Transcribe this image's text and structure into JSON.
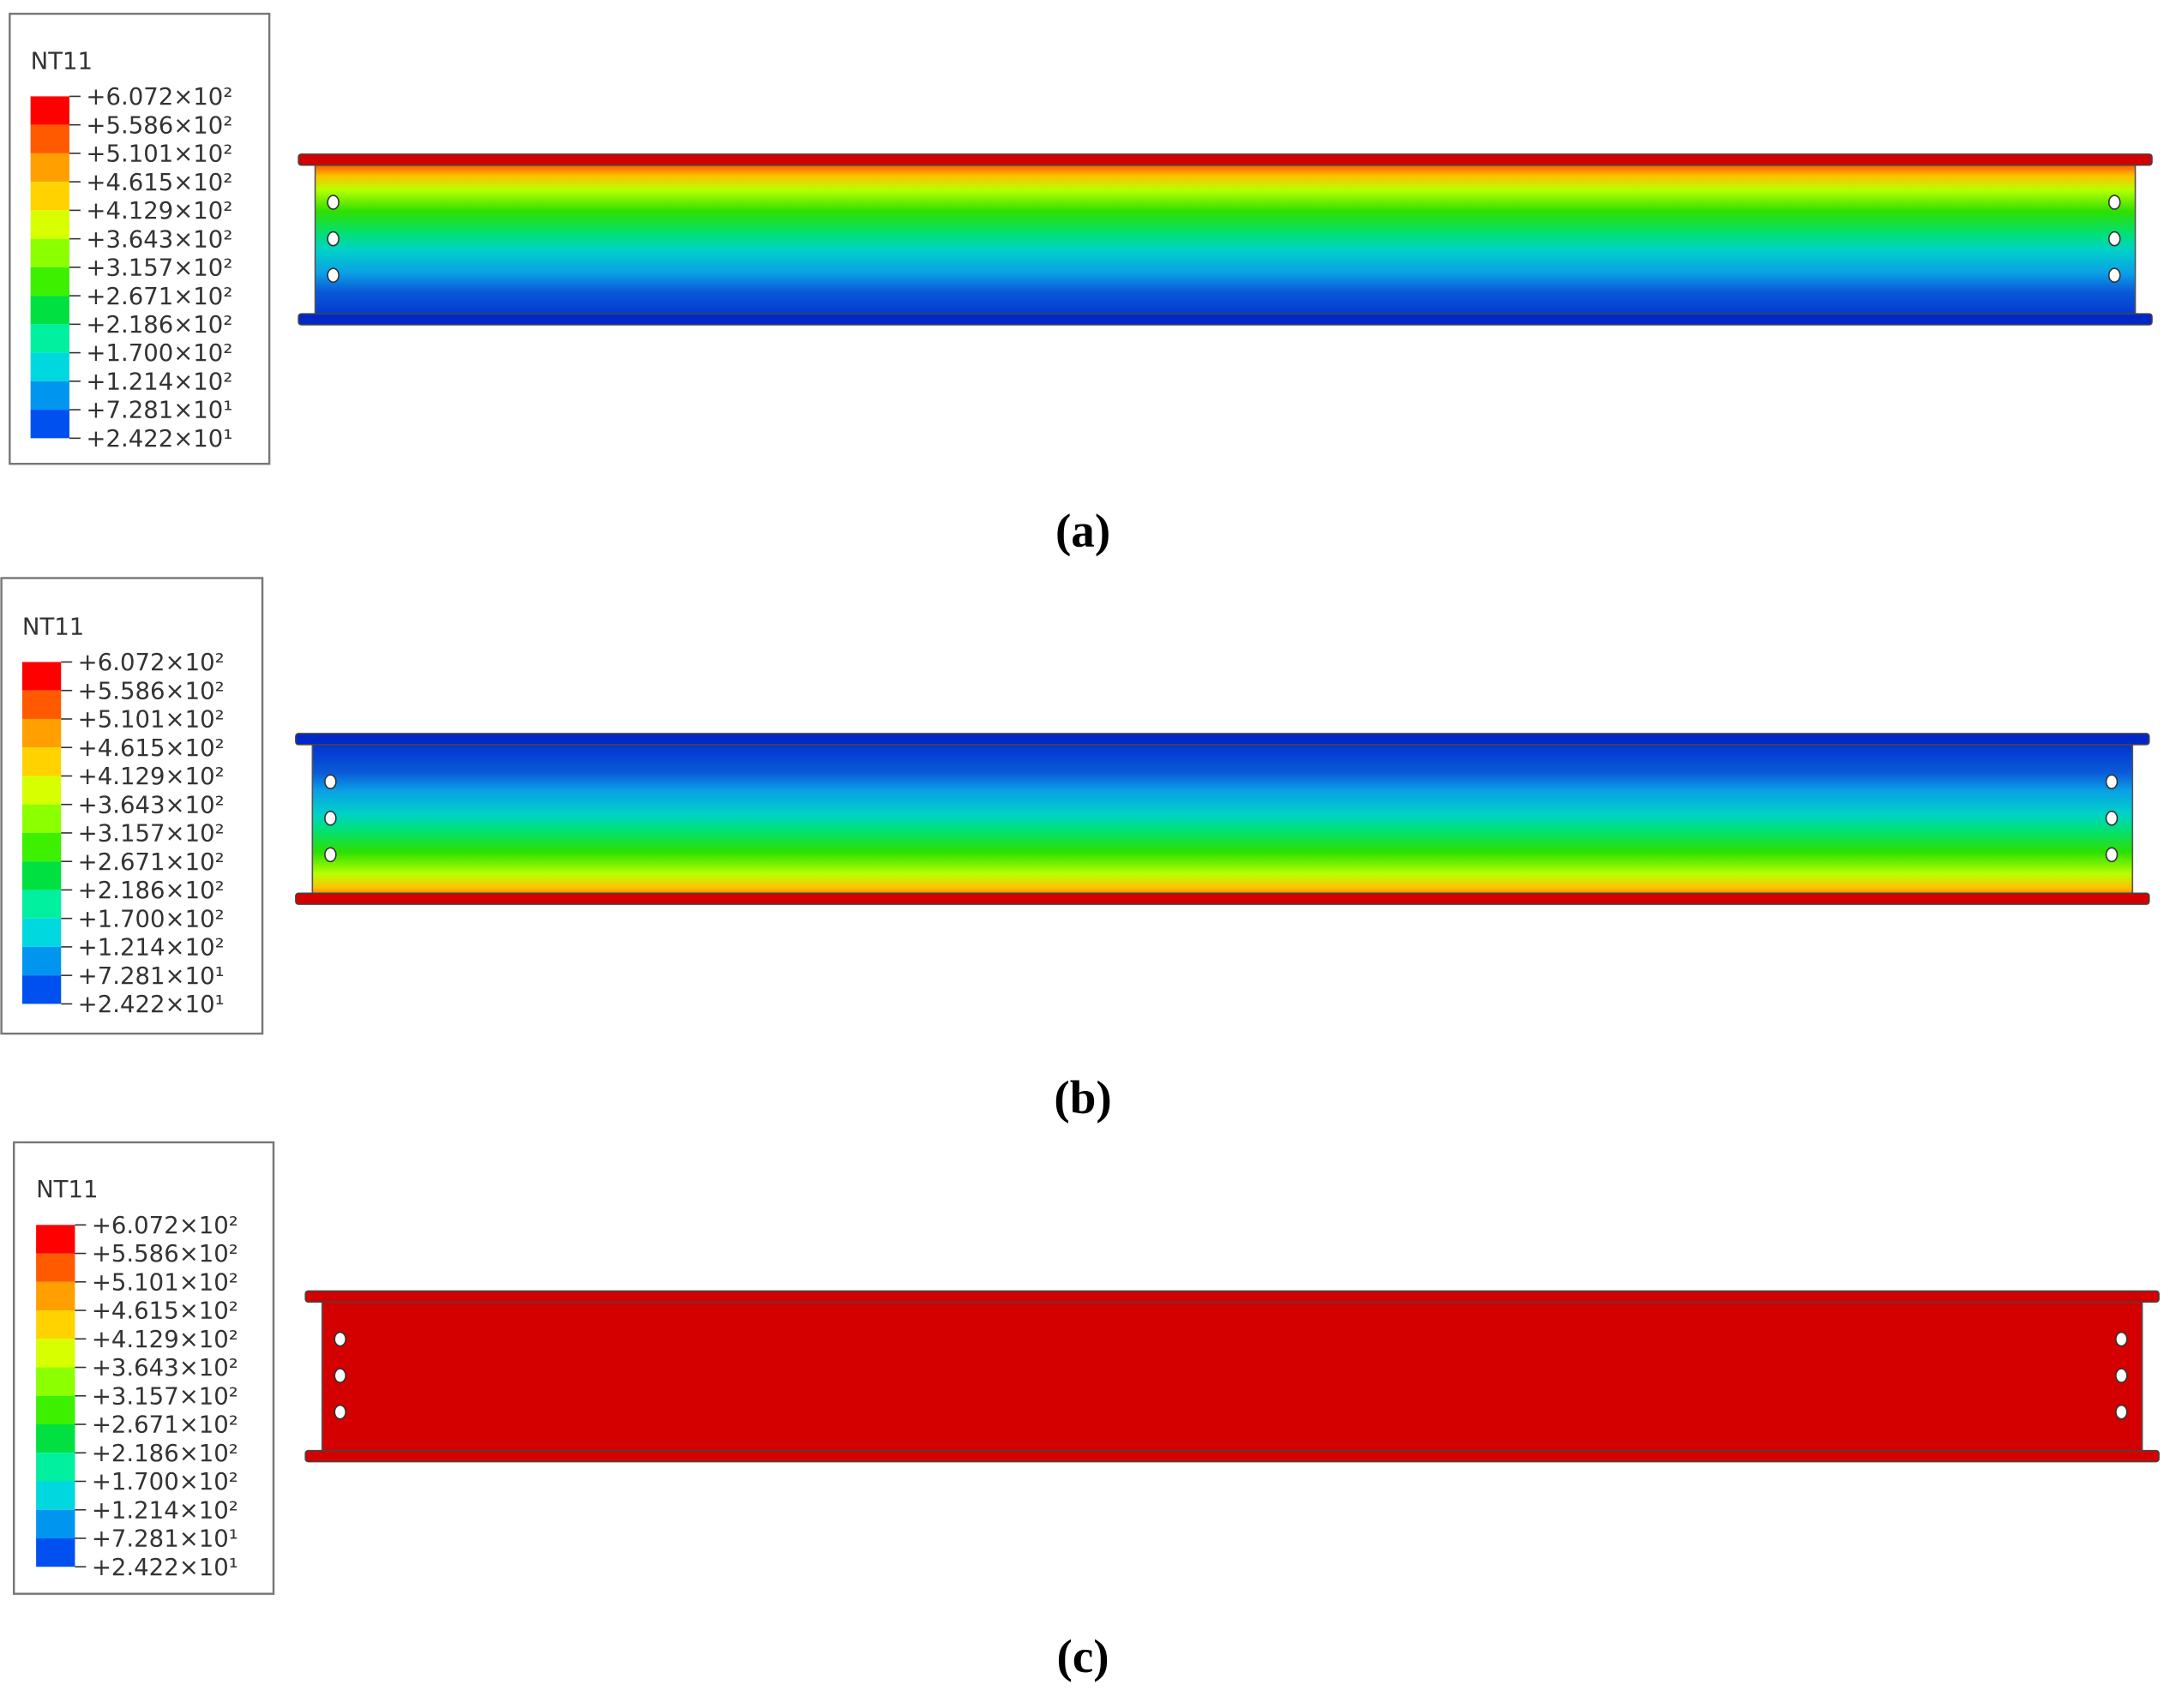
{
  "panels": [
    {
      "legend": {
        "title": "NT11",
        "labels": [
          "+6.072×10²",
          "+5.586×10²",
          "+5.101×10²",
          "+4.615×10²",
          "+4.129×10²",
          "+3.643×10²",
          "+3.157×10²",
          "+2.671×10²",
          "+2.186×10²",
          "+1.700×10²",
          "+1.214×10²",
          "+7.281×10¹",
          "+2.422×10¹"
        ]
      },
      "caption": "(a)"
    },
    {
      "legend": {
        "title": "NT11",
        "labels": [
          "+6.072×10²",
          "+5.586×10²",
          "+5.101×10²",
          "+4.615×10²",
          "+4.129×10²",
          "+3.643×10²",
          "+3.157×10²",
          "+2.671×10²",
          "+2.186×10²",
          "+1.700×10²",
          "+1.214×10²",
          "+7.281×10¹",
          "+2.422×10¹"
        ]
      },
      "caption": "(b)"
    },
    {
      "legend": {
        "title": "NT11",
        "labels": [
          "+6.072×10²",
          "+5.586×10²",
          "+5.101×10²",
          "+4.615×10²",
          "+4.129×10²",
          "+3.643×10²",
          "+3.157×10²",
          "+2.671×10²",
          "+2.186×10²",
          "+1.700×10²",
          "+1.214×10²",
          "+7.281×10¹",
          "+2.422×10¹"
        ]
      },
      "caption": "(c)"
    }
  ]
}
